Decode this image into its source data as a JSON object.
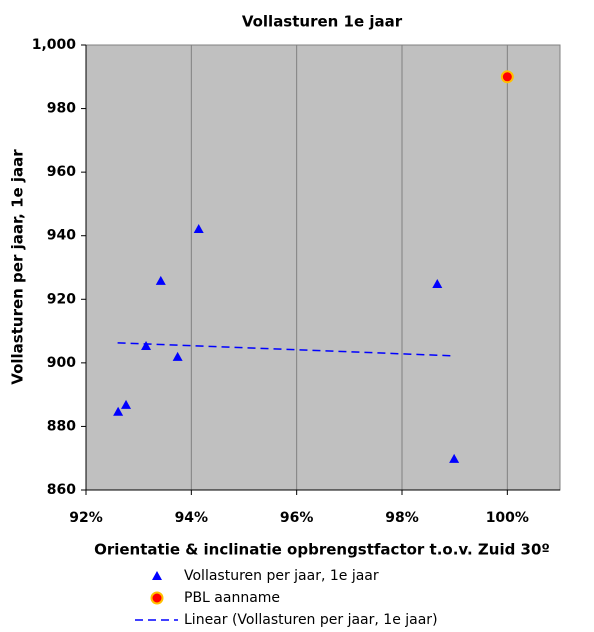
{
  "chart_data": {
    "type": "scatter",
    "title": "Vollasturen 1e jaar",
    "x_label": "Orientatie & inclinatie opbrengstfactor t.o.v. Zuid 30º",
    "y_label": "Vollasturen per jaar, 1e jaar",
    "xlim": [
      92,
      101
    ],
    "ylim": [
      860,
      1000
    ],
    "xticks": [
      {
        "value": 92,
        "label": "92%"
      },
      {
        "value": 94,
        "label": "94%"
      },
      {
        "value": 96,
        "label": "96%"
      },
      {
        "value": 98,
        "label": "98%"
      },
      {
        "value": 100,
        "label": "100%"
      }
    ],
    "yticks": [
      860,
      880,
      900,
      920,
      940,
      960,
      980,
      {
        "value": 1000,
        "label": "1,000"
      }
    ],
    "xgrid": true,
    "background": "#c0c0c0",
    "legend": "bottom",
    "series": [
      {
        "name": "Vollasturen per jaar, 1e jaar",
        "color": "#0000ff",
        "marker": "triangle",
        "x": [
          92.61,
          92.76,
          93.14,
          93.42,
          93.74,
          94.14,
          98.67,
          98.99
        ],
        "values": [
          884.6,
          886.8,
          905.3,
          925.8,
          901.9,
          942.1,
          924.8,
          869.8
        ]
      },
      {
        "name": "PBL aanname",
        "color": "#ff0000",
        "marker": "circle",
        "x": [
          100
        ],
        "values": [
          990
        ]
      },
      {
        "name": "Linear (Vollasturen per jaar, 1e jaar)",
        "color": "#0000ff",
        "marker": "dashed-line",
        "x": [
          92.6,
          99
        ],
        "values": [
          906.3,
          902.2
        ]
      }
    ]
  }
}
